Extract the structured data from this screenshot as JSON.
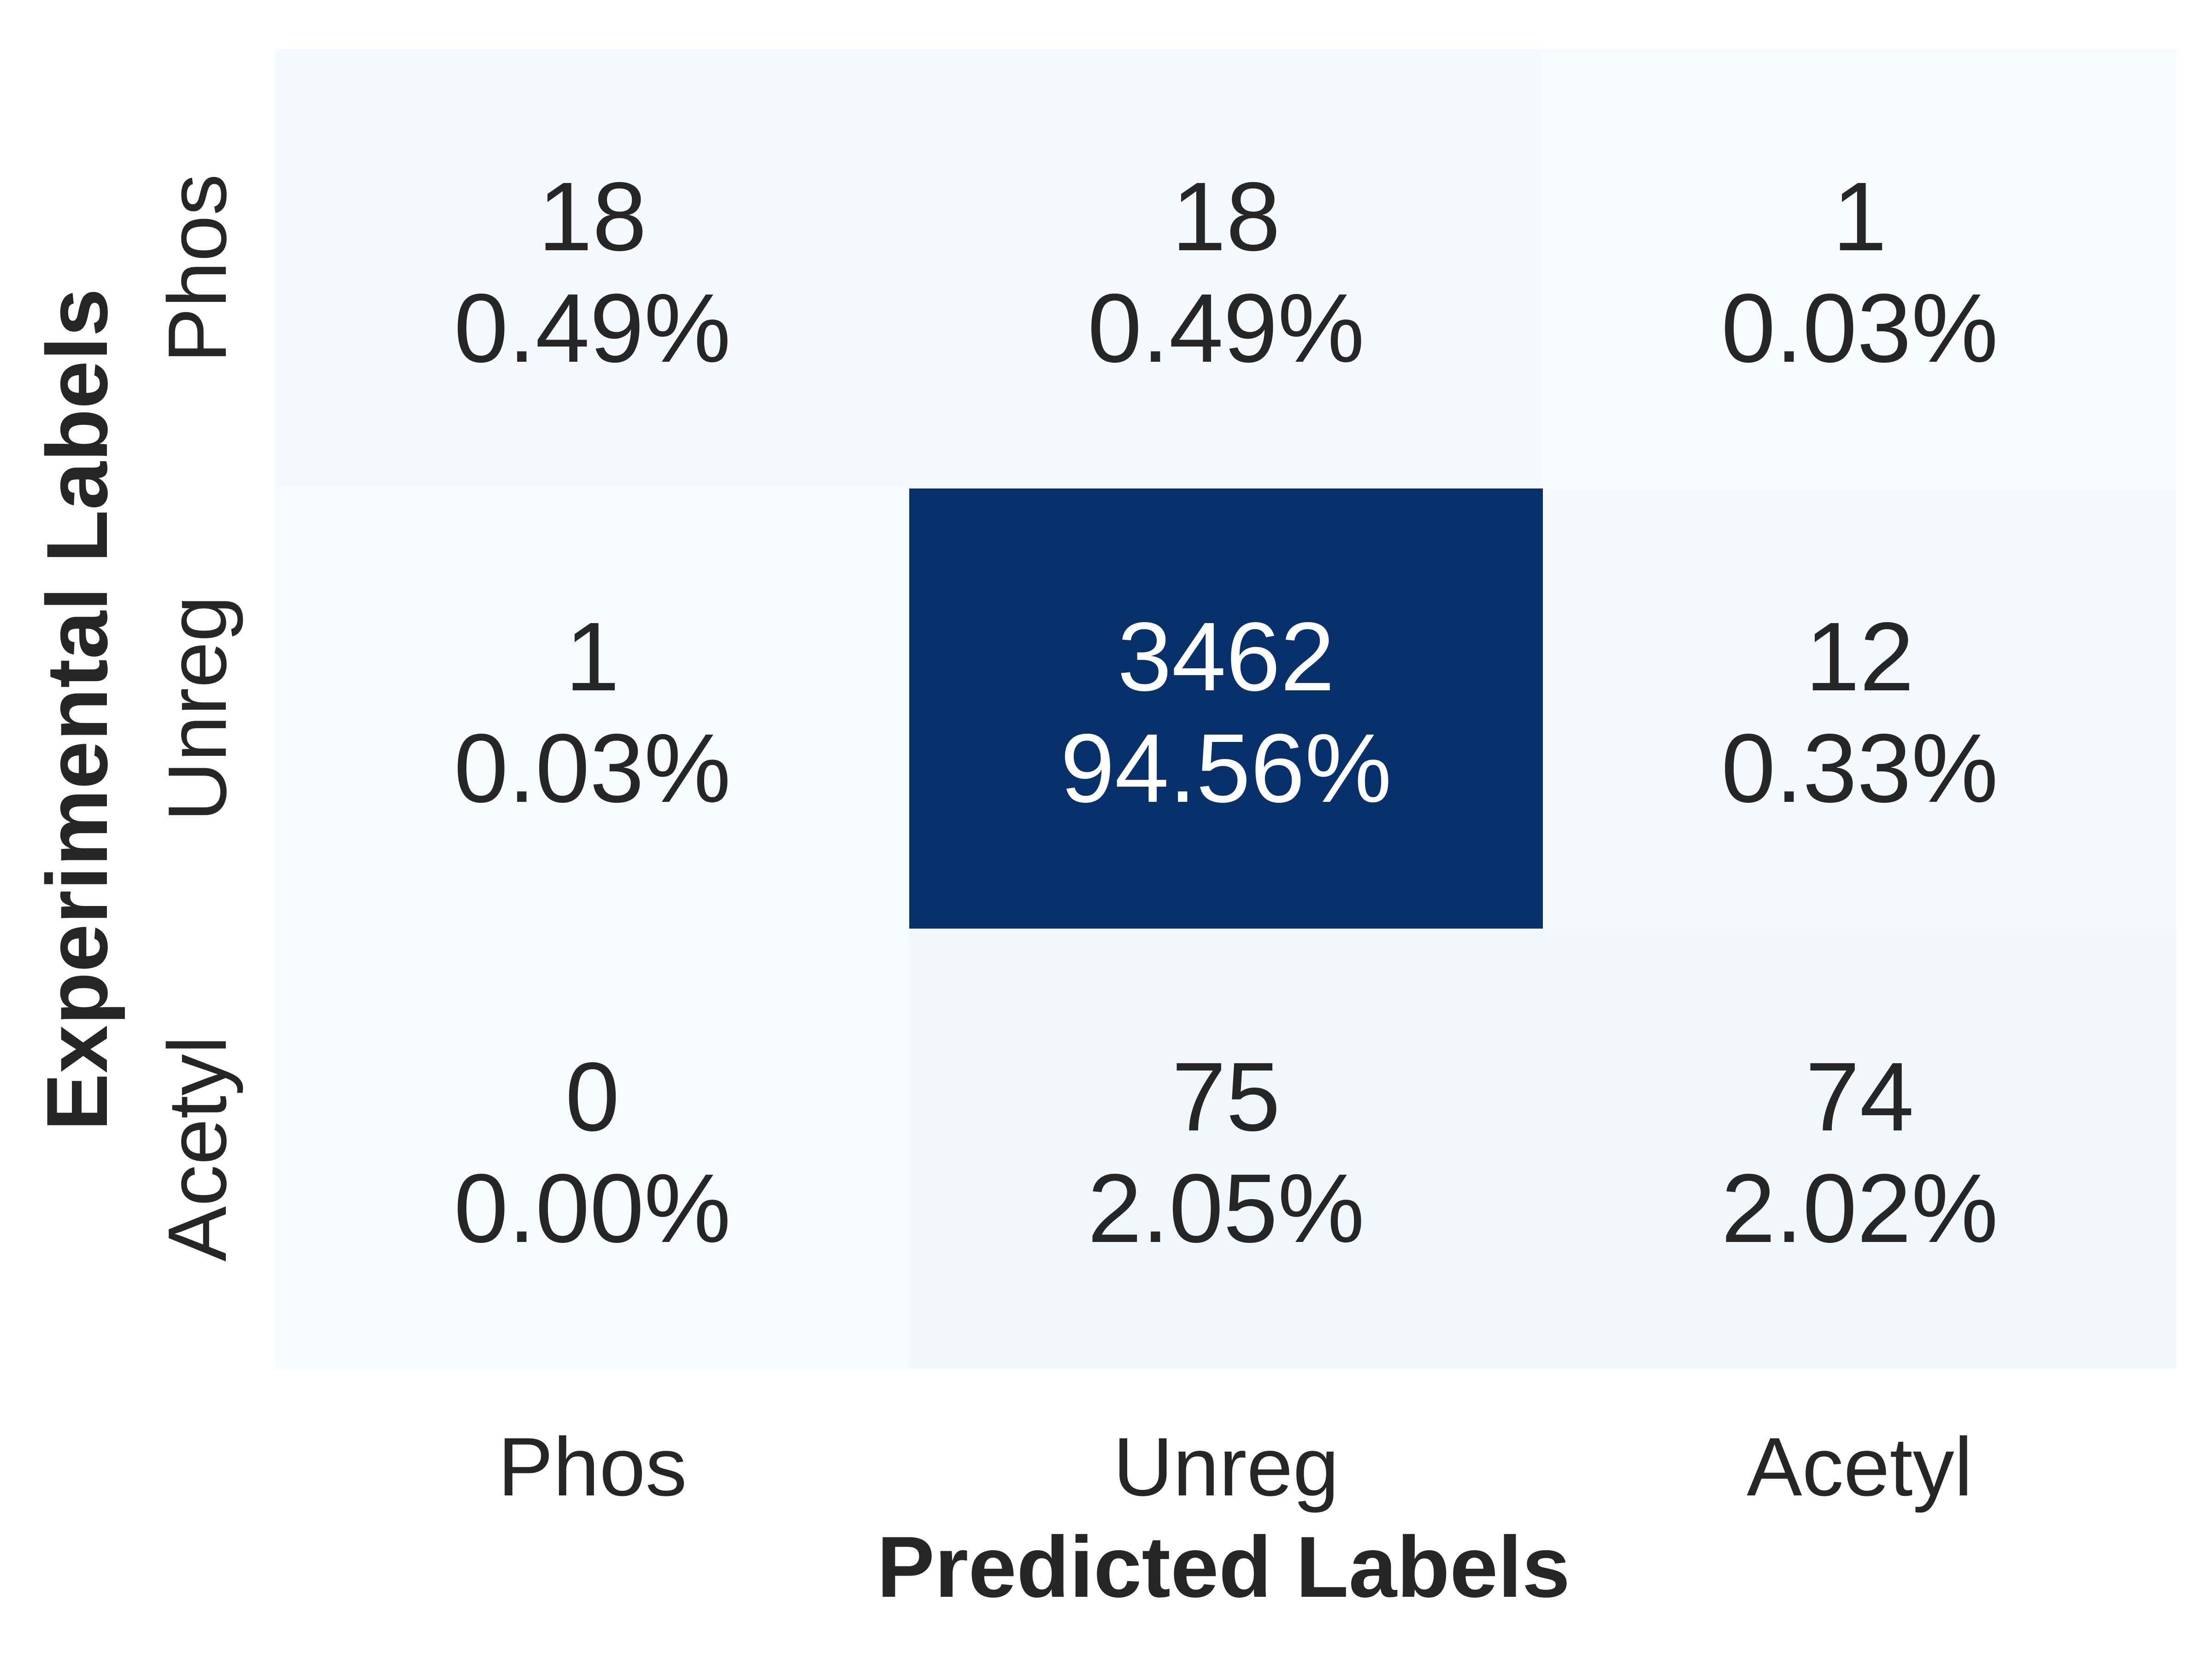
{
  "chart_data": {
    "type": "heatmap",
    "x_categories": [
      "Phos",
      "Unreg",
      "Acetyl"
    ],
    "y_categories": [
      "Phos",
      "Unreg",
      "Acetyl"
    ],
    "xlabel": "Predicted Labels",
    "ylabel": "Experimental Labels",
    "colormap": "Blues",
    "grid": false,
    "legend": "none",
    "value_range": [
      0,
      3462
    ],
    "cells": [
      [
        {
          "count": "18",
          "percent": "0.49%",
          "value": 18
        },
        {
          "count": "18",
          "percent": "0.49%",
          "value": 18
        },
        {
          "count": "1",
          "percent": "0.03%",
          "value": 1
        }
      ],
      [
        {
          "count": "1",
          "percent": "0.03%",
          "value": 1
        },
        {
          "count": "3462",
          "percent": "94.56%",
          "value": 3462
        },
        {
          "count": "12",
          "percent": "0.33%",
          "value": 12
        }
      ],
      [
        {
          "count": "0",
          "percent": "0.00%",
          "value": 0
        },
        {
          "count": "75",
          "percent": "2.05%",
          "value": 75
        },
        {
          "count": "74",
          "percent": "2.02%",
          "value": 74
        }
      ]
    ],
    "colors": {
      "low": "#f7fbff",
      "high": "#08306b",
      "text_dark": "#262626",
      "text_light": "#ffffff"
    }
  }
}
